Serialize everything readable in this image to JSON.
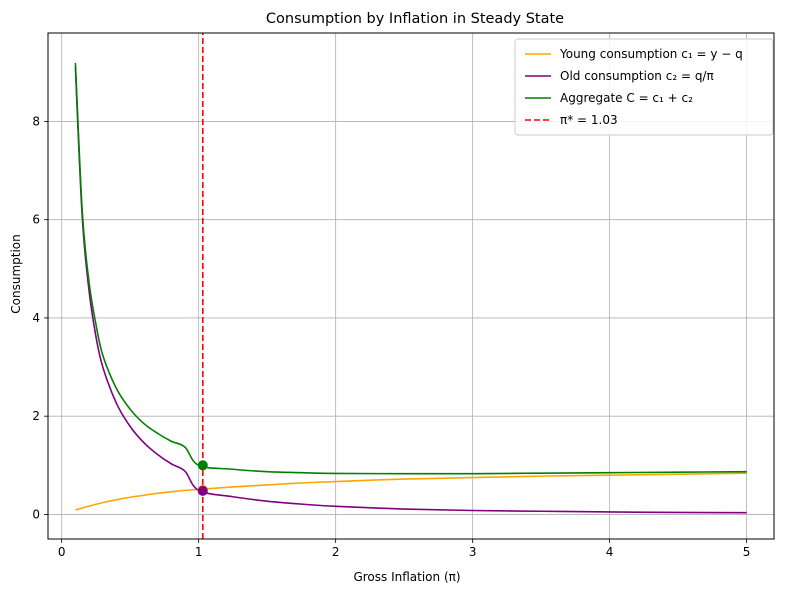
{
  "chart_data": {
    "type": "line",
    "title": "Consumption by Inflation in Steady State",
    "xlabel": "Gross Inflation (π)",
    "ylabel": "Consumption",
    "xlim": [
      -0.1,
      5.2
    ],
    "ylim": [
      -0.5,
      9.8
    ],
    "xticks": [
      0,
      1,
      2,
      3,
      4,
      5
    ],
    "yticks": [
      0,
      2,
      4,
      6,
      8
    ],
    "grid": true,
    "legend_position": "top-right",
    "pi_star": 1.03,
    "series": [
      {
        "name": "Young consumption c₁ = y − q",
        "color": "#ffa500",
        "x": [
          0.1,
          0.2,
          0.3,
          0.4,
          0.5,
          0.6,
          0.7,
          0.8,
          0.9,
          1.0,
          1.25,
          1.5,
          1.75,
          2.0,
          2.5,
          3.0,
          3.5,
          4.0,
          4.5,
          5.0
        ],
        "values": [
          0.09,
          0.17,
          0.24,
          0.3,
          0.35,
          0.39,
          0.43,
          0.46,
          0.49,
          0.51,
          0.56,
          0.6,
          0.64,
          0.67,
          0.72,
          0.75,
          0.78,
          0.8,
          0.82,
          0.84
        ]
      },
      {
        "name": "Old consumption c₂ = q/π",
        "color": "#800080",
        "x": [
          0.1,
          0.15,
          0.2,
          0.25,
          0.3,
          0.4,
          0.5,
          0.6,
          0.7,
          0.8,
          0.9,
          1.0,
          1.25,
          1.5,
          1.75,
          2.0,
          2.5,
          3.0,
          3.5,
          4.0,
          4.5,
          5.0
        ],
        "values": [
          9.1,
          6.05,
          4.55,
          3.62,
          3.0,
          2.26,
          1.79,
          1.46,
          1.22,
          1.03,
          0.88,
          0.49,
          0.36,
          0.27,
          0.21,
          0.165,
          0.11,
          0.08,
          0.065,
          0.05,
          0.04,
          0.035
        ]
      },
      {
        "name": "Aggregate C = c₁ + c₂",
        "color": "#008000",
        "x": [
          0.1,
          0.15,
          0.2,
          0.25,
          0.3,
          0.4,
          0.5,
          0.6,
          0.7,
          0.8,
          0.9,
          1.0,
          1.25,
          1.5,
          1.75,
          2.0,
          2.5,
          3.0,
          3.5,
          4.0,
          4.5,
          5.0
        ],
        "values": [
          9.19,
          6.17,
          4.72,
          3.87,
          3.24,
          2.56,
          2.14,
          1.85,
          1.65,
          1.49,
          1.37,
          1.0,
          0.92,
          0.87,
          0.85,
          0.835,
          0.83,
          0.83,
          0.84,
          0.85,
          0.86,
          0.87
        ]
      },
      {
        "name": "π* = 1.03",
        "color": "#ff0000",
        "style": "dashed",
        "x": [
          1.03,
          1.03
        ],
        "values": [
          -0.5,
          9.8
        ]
      }
    ],
    "markers": [
      {
        "x": 1.03,
        "y": 1.0,
        "color": "#008000"
      },
      {
        "x": 1.03,
        "y": 0.5,
        "color": "#ffa500"
      },
      {
        "x": 1.03,
        "y": 0.48,
        "color": "#800080"
      }
    ]
  }
}
